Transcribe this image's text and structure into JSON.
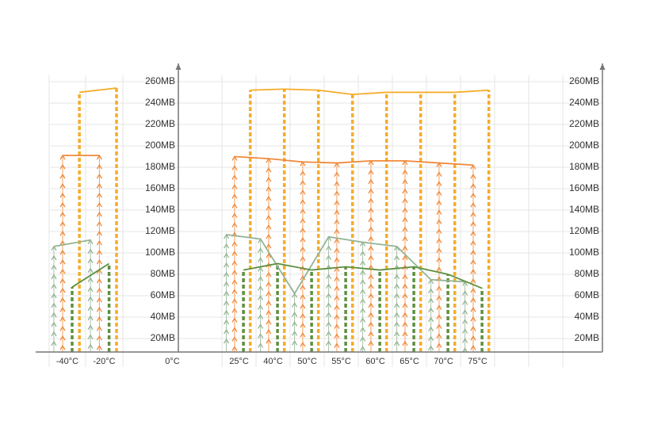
{
  "chart_data": {
    "type": "line",
    "categories": [
      "-40°C",
      "-20°C",
      "0°C",
      "25°C",
      "40°C",
      "50°C",
      "55°C",
      "60°C",
      "65°C",
      "70°C",
      "75°C"
    ],
    "series": [
      {
        "color": "#94b494",
        "style": "arrow-column",
        "values": [
          106,
          112,
          null,
          117,
          113,
          62,
          115,
          110,
          106,
          75,
          73
        ]
      },
      {
        "color": "#f08a3c",
        "style": "arrow-column",
        "values": [
          191,
          191,
          null,
          190,
          188,
          185,
          184,
          186,
          186,
          184,
          182
        ]
      },
      {
        "color": "#5e8f3e",
        "style": "dash-column",
        "values": [
          68,
          90,
          null,
          84,
          90,
          84,
          87,
          84,
          87,
          80,
          67
        ]
      },
      {
        "color": "#f5ac2a",
        "style": "dash-column",
        "values": [
          250,
          254,
          null,
          252,
          253,
          252,
          248,
          250,
          250,
          250,
          252
        ]
      }
    ],
    "ylim": [
      7.4,
      277
    ],
    "yticks": [
      {
        "value": 20,
        "label": "20MB"
      },
      {
        "value": 40,
        "label": "40MB"
      },
      {
        "value": 60,
        "label": "60MB"
      },
      {
        "value": 80,
        "label": "80MB"
      },
      {
        "value": 100,
        "label": "100MB"
      },
      {
        "value": 120,
        "label": "120MB"
      },
      {
        "value": 140,
        "label": "140MB"
      },
      {
        "value": 160,
        "label": "160MB"
      },
      {
        "value": 180,
        "label": "180MB"
      },
      {
        "value": 200,
        "label": "200MB"
      },
      {
        "value": 220,
        "label": "220MB"
      },
      {
        "value": 240,
        "label": "240MB"
      },
      {
        "value": 260,
        "label": "260MB"
      }
    ],
    "grid": true
  }
}
